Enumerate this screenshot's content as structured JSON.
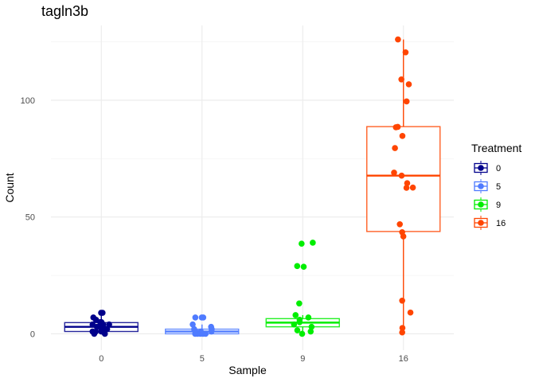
{
  "chart_data": {
    "type": "boxplot",
    "title": "tagln3b",
    "xlabel": "Sample",
    "ylabel": "Count",
    "categories": [
      "0",
      "5",
      "9",
      "16"
    ],
    "yticks": [
      0,
      50,
      100
    ],
    "ytick_labels": [
      "0",
      "50",
      "100"
    ],
    "ylim": [
      -7,
      132
    ],
    "grid": true,
    "legend": {
      "title": "Treatment",
      "position": "right",
      "entries": [
        "0",
        "5",
        "9",
        "16"
      ]
    },
    "series": [
      {
        "name": "0",
        "color": "#00008B",
        "box": {
          "q1": 1,
          "median": 3,
          "q3": 4.8,
          "whisker_low": 0,
          "whisker_high": 9
        },
        "points": [
          9,
          9,
          7,
          6,
          5,
          5,
          4,
          4,
          4,
          3,
          3,
          2,
          2,
          1,
          1,
          1,
          0,
          0
        ]
      },
      {
        "name": "5",
        "color": "#4F7BFF",
        "box": {
          "q1": 0,
          "median": 1,
          "q3": 2,
          "whisker_low": 0,
          "whisker_high": 4
        },
        "points": [
          7,
          7,
          7,
          4,
          3,
          2,
          2,
          1,
          1,
          1,
          0,
          0,
          0,
          0,
          0
        ]
      },
      {
        "name": "9",
        "color": "#00EE00",
        "box": {
          "q1": 3,
          "median": 4.8,
          "q3": 6.5,
          "whisker_low": 0,
          "whisker_high": 8
        },
        "points": [
          39,
          38.6,
          29,
          28.7,
          13,
          8,
          7,
          6,
          5,
          4,
          3,
          1.5,
          1,
          0
        ]
      },
      {
        "name": "16",
        "color": "#FF4500",
        "box": {
          "q1": 43.8,
          "median": 67.7,
          "q3": 88.7,
          "whisker_low": 0.6,
          "whisker_high": 126
        },
        "points": [
          126,
          120.5,
          108.9,
          106.8,
          99.5,
          88.4,
          88.6,
          84.7,
          79.5,
          69,
          67.7,
          64.5,
          62.5,
          62.6,
          46.9,
          43.5,
          41.7,
          14.2,
          9.1,
          2.5,
          0.6
        ]
      }
    ]
  }
}
